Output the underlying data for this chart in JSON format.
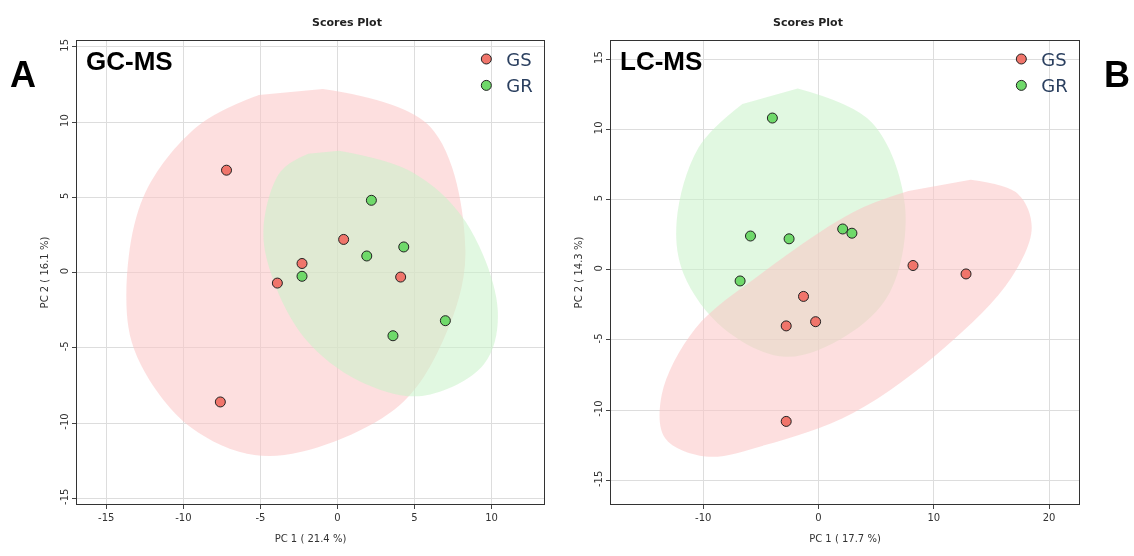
{
  "chart_data": [
    {
      "type": "scatter",
      "title": "Scores Plot",
      "xlabel": "PC 1 ( 21.4 %)",
      "ylabel": "PC 2 ( 16.1 %)",
      "annotations": [
        "GC-MS",
        "A"
      ],
      "xlim": [
        -16.9,
        13.4
      ],
      "ylim": [
        -15.4,
        15.4
      ],
      "xticks": [
        -15,
        -10,
        -5,
        0,
        5,
        10
      ],
      "yticks": [
        -15,
        -10,
        -5,
        0,
        5,
        10,
        15
      ],
      "grid": true,
      "legend": "top right",
      "marker": "circle",
      "series": [
        {
          "type": "area",
          "marker": "none",
          "color": "#fbc5c5",
          "x": [
            -0.95,
            6.0,
            8.3,
            6.9,
            3.7,
            -4.4,
            -9.5,
            -13.0,
            -13.7,
            -12.6,
            -9.1,
            -5.1
          ],
          "values": [
            12.2,
            9.7,
            1.5,
            -4.4,
            -9.1,
            -12.2,
            -10.3,
            -5.6,
            -1.6,
            5.0,
            9.7,
            11.8
          ]
        },
        {
          "type": "area",
          "marker": "none",
          "color": "#c8f2c8",
          "x": [
            0.1,
            4.8,
            8.3,
            10.4,
            9.5,
            5.5,
            1.4,
            -2.1,
            -4.2,
            -4.8,
            -3.7,
            -1.9
          ],
          "values": [
            8.1,
            6.7,
            3.4,
            -2.5,
            -6.1,
            -8.2,
            -7.2,
            -4.4,
            -0.4,
            2.9,
            6.7,
            7.9
          ]
        },
        {
          "name": "GS",
          "color": "#f0756b",
          "x": [
            -7.2,
            0.4,
            -2.3,
            -3.9,
            4.1,
            -7.6
          ],
          "values": [
            6.8,
            2.2,
            0.6,
            -0.7,
            -0.3,
            -8.6
          ]
        },
        {
          "name": "GR",
          "color": "#6fd96a",
          "x": [
            2.2,
            4.3,
            1.9,
            -2.3,
            7.0,
            3.6
          ],
          "values": [
            4.8,
            1.7,
            1.1,
            -0.25,
            -3.2,
            -4.2
          ]
        }
      ]
    },
    {
      "type": "scatter",
      "title": "Scores Plot",
      "xlabel": "PC 1 ( 17.7 %)",
      "ylabel": "PC 2 ( 14.3 %)",
      "annotations": [
        "LC-MS",
        "B"
      ],
      "xlim": [
        -18.0,
        22.6
      ],
      "ylim": [
        -16.7,
        16.3
      ],
      "xticks": [
        -10,
        0,
        10,
        20
      ],
      "yticks": [
        -15,
        -10,
        -5,
        0,
        5,
        10,
        15
      ],
      "grid": true,
      "legend": "top right",
      "marker": "circle",
      "series": [
        {
          "type": "area",
          "marker": "none",
          "color": "#c8f2c8",
          "x": [
            -1.8,
            4.6,
            7.5,
            6.2,
            2.4,
            -2.9,
            -8.2,
            -11.7,
            -12.3,
            -10.4,
            -6.6
          ],
          "values": [
            12.9,
            10.5,
            4.6,
            -1.6,
            -4.7,
            -6.2,
            -4.2,
            -0.3,
            3.5,
            8.7,
            11.8
          ]
        },
        {
          "type": "area",
          "marker": "none",
          "color": "#fbc5c5",
          "x": [
            13.2,
            17.3,
            18.5,
            16.7,
            11.0,
            3.0,
            -4.7,
            -9.8,
            -13.3,
            -13.6,
            -10.7,
            -5.0,
            3.0,
            7.8
          ],
          "values": [
            6.4,
            5.4,
            3.0,
            -0.6,
            -5.5,
            -10.2,
            -12.5,
            -13.3,
            -12.0,
            -8.9,
            -4.2,
            -0.3,
            4.1,
            5.6
          ]
        },
        {
          "name": "GS",
          "color": "#f0756b",
          "x": [
            8.2,
            12.8,
            -1.3,
            -2.8,
            -0.25,
            -2.8
          ],
          "values": [
            0.3,
            -0.3,
            -1.9,
            -4.0,
            -3.7,
            -10.8
          ]
        },
        {
          "name": "GR",
          "color": "#6fd96a",
          "x": [
            -4.0,
            -5.9,
            -2.55,
            2.1,
            2.9,
            -6.8
          ],
          "values": [
            10.8,
            2.4,
            2.2,
            2.9,
            2.6,
            -0.8
          ]
        }
      ]
    }
  ]
}
